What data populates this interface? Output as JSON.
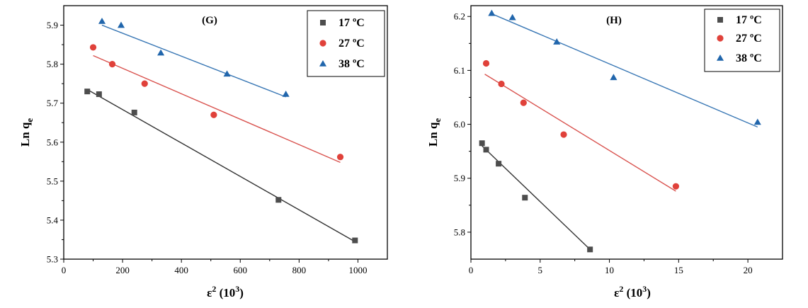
{
  "colors": {
    "17": "#4d4d4d",
    "27": "#e0413a",
    "38": "#2166ac",
    "fit17": "#333333",
    "fit27": "#d9534f",
    "fit38": "#3a78b5"
  },
  "chart_data": [
    {
      "type": "scatter",
      "panel_label": "(G)",
      "xlabel_base": "ε",
      "xlabel_sup": "2",
      "xlabel_rest": " (10",
      "xlabel_sup2": "3",
      "xlabel_end": ")",
      "ylabel_main": "Ln q",
      "ylabel_sub": "e",
      "xlim": [
        0,
        1100
      ],
      "ylim": [
        5.3,
        5.95
      ],
      "xticks": [
        0,
        200,
        400,
        600,
        800,
        1000
      ],
      "yticks": [
        5.3,
        5.4,
        5.5,
        5.6,
        5.7,
        5.8,
        5.9
      ],
      "xtick_labels": [
        "0",
        "200",
        "400",
        "600",
        "800",
        "1000"
      ],
      "ytick_labels": [
        "5.3",
        "5.4",
        "5.5",
        "5.6",
        "5.7",
        "5.8",
        "5.9"
      ],
      "legend_position": "top-right",
      "series": [
        {
          "name": "17 ºC",
          "marker": "square",
          "color_key": "17",
          "x": [
            80,
            120,
            240,
            730,
            990
          ],
          "y": [
            5.73,
            5.723,
            5.676,
            5.452,
            5.348
          ],
          "fit": [
            [
              80,
              5.735
            ],
            [
              990,
              5.345
            ]
          ]
        },
        {
          "name": "27 ºC",
          "marker": "circle",
          "color_key": "27",
          "x": [
            100,
            165,
            275,
            510,
            940
          ],
          "y": [
            5.843,
            5.8,
            5.75,
            5.67,
            5.562
          ],
          "fit": [
            [
              100,
              5.822
            ],
            [
              940,
              5.548
            ]
          ]
        },
        {
          "name": "38 ºC",
          "marker": "triangle",
          "color_key": "38",
          "x": [
            130,
            195,
            330,
            555,
            755
          ],
          "y": [
            5.91,
            5.9,
            5.829,
            5.775,
            5.723
          ],
          "fit": [
            [
              130,
              5.9
            ],
            [
              755,
              5.716
            ]
          ]
        }
      ]
    },
    {
      "type": "scatter",
      "panel_label": "(H)",
      "xlabel_base": "ε",
      "xlabel_sup": "2",
      "xlabel_rest": " (10",
      "xlabel_sup2": "3",
      "xlabel_end": ")",
      "ylabel_main": "Ln q",
      "ylabel_sub": "e",
      "xlim": [
        0,
        22.5
      ],
      "ylim": [
        5.75,
        6.22
      ],
      "xticks": [
        0,
        5,
        10,
        15,
        20
      ],
      "yticks": [
        5.8,
        5.9,
        6.0,
        6.1,
        6.2
      ],
      "xtick_labels": [
        "0",
        "5",
        "10",
        "15",
        "20"
      ],
      "ytick_labels": [
        "5.8",
        "5.9",
        "6.0",
        "6.1",
        "6.2"
      ],
      "legend_position": "top-right",
      "series": [
        {
          "name": "17 ºC",
          "marker": "square",
          "color_key": "17",
          "x": [
            0.8,
            1.1,
            2.0,
            3.9,
            8.6
          ],
          "y": [
            5.965,
            5.953,
            5.927,
            5.864,
            5.768
          ],
          "fit": [
            [
              0.8,
              5.96
            ],
            [
              8.6,
              5.768
            ]
          ]
        },
        {
          "name": "27 ºC",
          "marker": "circle",
          "color_key": "27",
          "x": [
            1.1,
            2.2,
            3.8,
            6.7,
            14.8
          ],
          "y": [
            6.113,
            6.075,
            6.04,
            5.981,
            5.885
          ],
          "fit": [
            [
              1.0,
              6.093
            ],
            [
              14.8,
              5.876
            ]
          ]
        },
        {
          "name": "38 ºC",
          "marker": "triangle",
          "color_key": "38",
          "x": [
            1.5,
            3.0,
            6.2,
            10.3,
            20.7
          ],
          "y": [
            6.206,
            6.198,
            6.153,
            6.087,
            6.004
          ],
          "fit": [
            [
              1.5,
              6.205
            ],
            [
              20.7,
              5.995
            ]
          ]
        }
      ]
    }
  ]
}
